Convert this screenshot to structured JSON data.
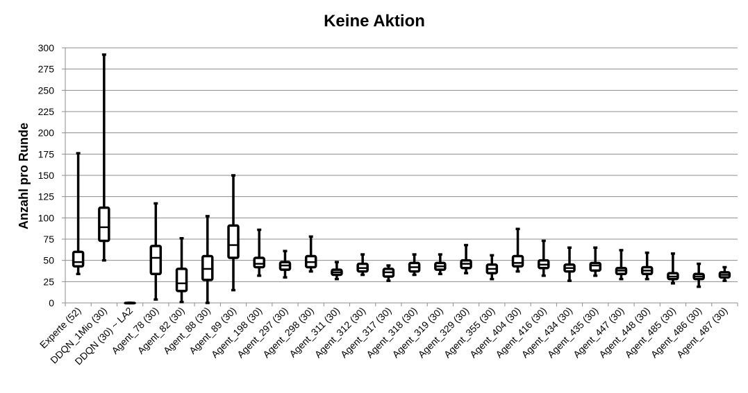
{
  "chart_data": {
    "type": "box",
    "title": "Keine Aktion",
    "xlabel": "",
    "ylabel": "Anzahl pro Runde",
    "ylim": [
      0,
      300
    ],
    "yticks": [
      0,
      25,
      50,
      75,
      100,
      125,
      150,
      175,
      200,
      225,
      250,
      275,
      300
    ],
    "grid": true,
    "legend": "none",
    "categories": [
      "Experte (52)",
      "DDQN_1Mio (30)",
      "DDQN (30) ~ LA2",
      "Agent_78 (30)",
      "Agent_82 (30)",
      "Agent_88 (30)",
      "Agent_89 (30)",
      "Agent_198 (30)",
      "Agent_297 (30)",
      "Agent_298 (30)",
      "Agent_311 (30)",
      "Agent_312 (30)",
      "Agent_317 (30)",
      "Agent_318 (30)",
      "Agent_319 (30)",
      "Agent_329 (30)",
      "Agent_355 (30)",
      "Agent_404 (30)",
      "Agent_416 (30)",
      "Agent_434 (30)",
      "Agent_435 (30)",
      "Agent_447 (30)",
      "Agent_448 (30)",
      "Agent_485 (30)",
      "Agent_486 (30)",
      "Agent_487 (30)"
    ],
    "boxes": [
      {
        "min": 34,
        "q1": 43,
        "median": 48,
        "q3": 60,
        "max": 176
      },
      {
        "min": 50,
        "q1": 73,
        "median": 89,
        "q3": 112,
        "max": 292
      },
      {
        "min": 0,
        "q1": 0,
        "median": 0,
        "q3": 0,
        "max": 0
      },
      {
        "min": 4,
        "q1": 34,
        "median": 53,
        "q3": 67,
        "max": 117
      },
      {
        "min": 1,
        "q1": 14,
        "median": 23,
        "q3": 40,
        "max": 76
      },
      {
        "min": 0,
        "q1": 27,
        "median": 40,
        "q3": 55,
        "max": 102
      },
      {
        "min": 15,
        "q1": 53,
        "median": 68,
        "q3": 91,
        "max": 150
      },
      {
        "min": 32,
        "q1": 42,
        "median": 46,
        "q3": 53,
        "max": 86
      },
      {
        "min": 30,
        "q1": 39,
        "median": 44,
        "q3": 48,
        "max": 61
      },
      {
        "min": 37,
        "q1": 42,
        "median": 48,
        "q3": 55,
        "max": 78
      },
      {
        "min": 28,
        "q1": 33,
        "median": 36,
        "q3": 39,
        "max": 48
      },
      {
        "min": 33,
        "q1": 37,
        "median": 41,
        "q3": 46,
        "max": 57
      },
      {
        "min": 26,
        "q1": 31,
        "median": 36,
        "q3": 40,
        "max": 44
      },
      {
        "min": 33,
        "q1": 37,
        "median": 42,
        "q3": 47,
        "max": 57
      },
      {
        "min": 34,
        "q1": 39,
        "median": 43,
        "q3": 47,
        "max": 57
      },
      {
        "min": 35,
        "q1": 41,
        "median": 46,
        "q3": 50,
        "max": 68
      },
      {
        "min": 28,
        "q1": 35,
        "median": 40,
        "q3": 45,
        "max": 56
      },
      {
        "min": 37,
        "q1": 43,
        "median": 47,
        "q3": 55,
        "max": 87
      },
      {
        "min": 32,
        "q1": 41,
        "median": 45,
        "q3": 50,
        "max": 73
      },
      {
        "min": 26,
        "q1": 37,
        "median": 41,
        "q3": 45,
        "max": 65
      },
      {
        "min": 32,
        "q1": 38,
        "median": 44,
        "q3": 47,
        "max": 65
      },
      {
        "min": 28,
        "q1": 34,
        "median": 38,
        "q3": 41,
        "max": 62
      },
      {
        "min": 28,
        "q1": 34,
        "median": 38,
        "q3": 42,
        "max": 59
      },
      {
        "min": 23,
        "q1": 28,
        "median": 31,
        "q3": 35,
        "max": 58
      },
      {
        "min": 19,
        "q1": 28,
        "median": 31,
        "q3": 34,
        "max": 46
      },
      {
        "min": 26,
        "q1": 30,
        "median": 33,
        "q3": 36,
        "max": 42
      }
    ]
  }
}
